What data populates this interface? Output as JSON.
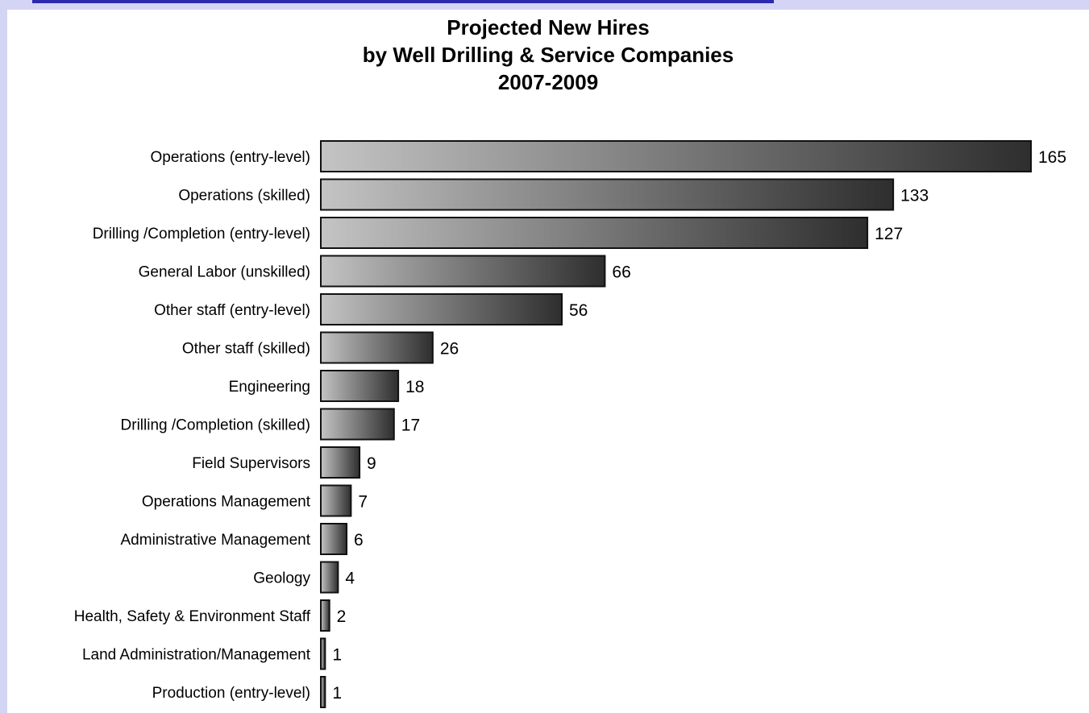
{
  "chart_data": {
    "type": "bar",
    "orientation": "horizontal",
    "title_lines": [
      "Projected New Hires",
      "by Well Drilling & Service Companies",
      "2007-2009"
    ],
    "categories": [
      "Operations (entry-level)",
      "Operations (skilled)",
      "Drilling /Completion (entry-level)",
      "General Labor (unskilled)",
      "Other staff (entry-level)",
      "Other staff (skilled)",
      "Engineering",
      "Drilling /Completion (skilled)",
      "Field Supervisors",
      "Operations Management",
      "Administrative Management",
      "Geology",
      "Health, Safety & Environment Staff",
      "Land Administration/Management",
      "Production (entry-level)"
    ],
    "values": [
      165,
      133,
      127,
      66,
      56,
      26,
      18,
      17,
      9,
      7,
      6,
      4,
      2,
      1,
      1
    ],
    "xlim": [
      0,
      165
    ],
    "grid": false,
    "legend": "none",
    "colors": {
      "bar_gradient_start": "#c4c4c4",
      "bar_gradient_end": "#2e2e2e",
      "bar_stroke": "#111111",
      "frame": "#d4d4f4",
      "frame_ink": "#2a2ab0"
    }
  }
}
